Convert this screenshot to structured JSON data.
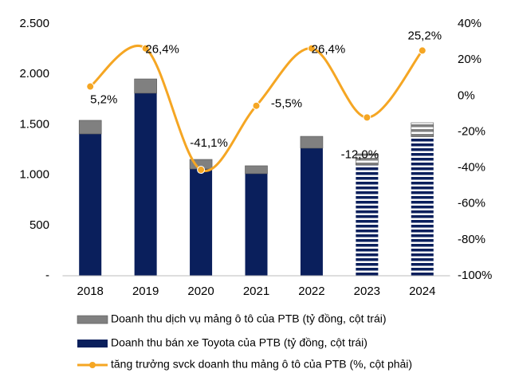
{
  "chart_data": {
    "type": "bar",
    "categories": [
      "2018",
      "2019",
      "2020",
      "2021",
      "2022",
      "2023",
      "2024"
    ],
    "series": [
      {
        "name": "Doanh thu bán xe Toyota của PTB (tỷ đồng, cột trái)",
        "color": "#0a1f5c",
        "type": "bar",
        "values": [
          1408,
          1812,
          1060,
          1013,
          1266,
          1100,
          1380
        ]
      },
      {
        "name": "Doanh thu dịch vụ mảng ô tô của PTB (tỷ đồng, cột trái)",
        "color": "#808080",
        "type": "bar",
        "values": [
          135,
          142,
          95,
          79,
          118,
          110,
          139
        ]
      },
      {
        "name": "tăng trưởng svck doanh thu mảng ô tô của PTB (%, cột phải)",
        "color": "#f5a623",
        "type": "line",
        "axis": "y2",
        "values": [
          5.2,
          26.4,
          -41.1,
          -5.5,
          26.4,
          -12.0,
          25.2
        ],
        "value_labels": [
          "5,2%",
          "26,4%",
          "-41,1%",
          "-5,5%",
          "26,4%",
          "-12,0%",
          "25,2%"
        ]
      }
    ],
    "hatched": [
      false,
      false,
      false,
      false,
      false,
      true,
      true
    ],
    "ylim": [
      0,
      2500
    ],
    "yticks": [
      {
        "value": 0,
        "label": "-"
      },
      500,
      {
        "value": 1000,
        "label": "1.000"
      },
      {
        "value": 1500,
        "label": "1.500"
      },
      {
        "value": 2000,
        "label": "2.000"
      },
      {
        "value": 2500,
        "label": "2.500"
      }
    ],
    "y2lim": [
      -100,
      40
    ],
    "y2ticks": [
      {
        "value": -100,
        "label": "-100%"
      },
      {
        "value": -80,
        "label": "-80%"
      },
      {
        "value": -60,
        "label": "-60%"
      },
      {
        "value": -40,
        "label": "-40%"
      },
      {
        "value": -20,
        "label": "-20%"
      },
      {
        "value": 0,
        "label": "0%"
      },
      {
        "value": 20,
        "label": "20%"
      },
      {
        "value": 40,
        "label": "40%"
      }
    ],
    "legend": "bottom"
  }
}
